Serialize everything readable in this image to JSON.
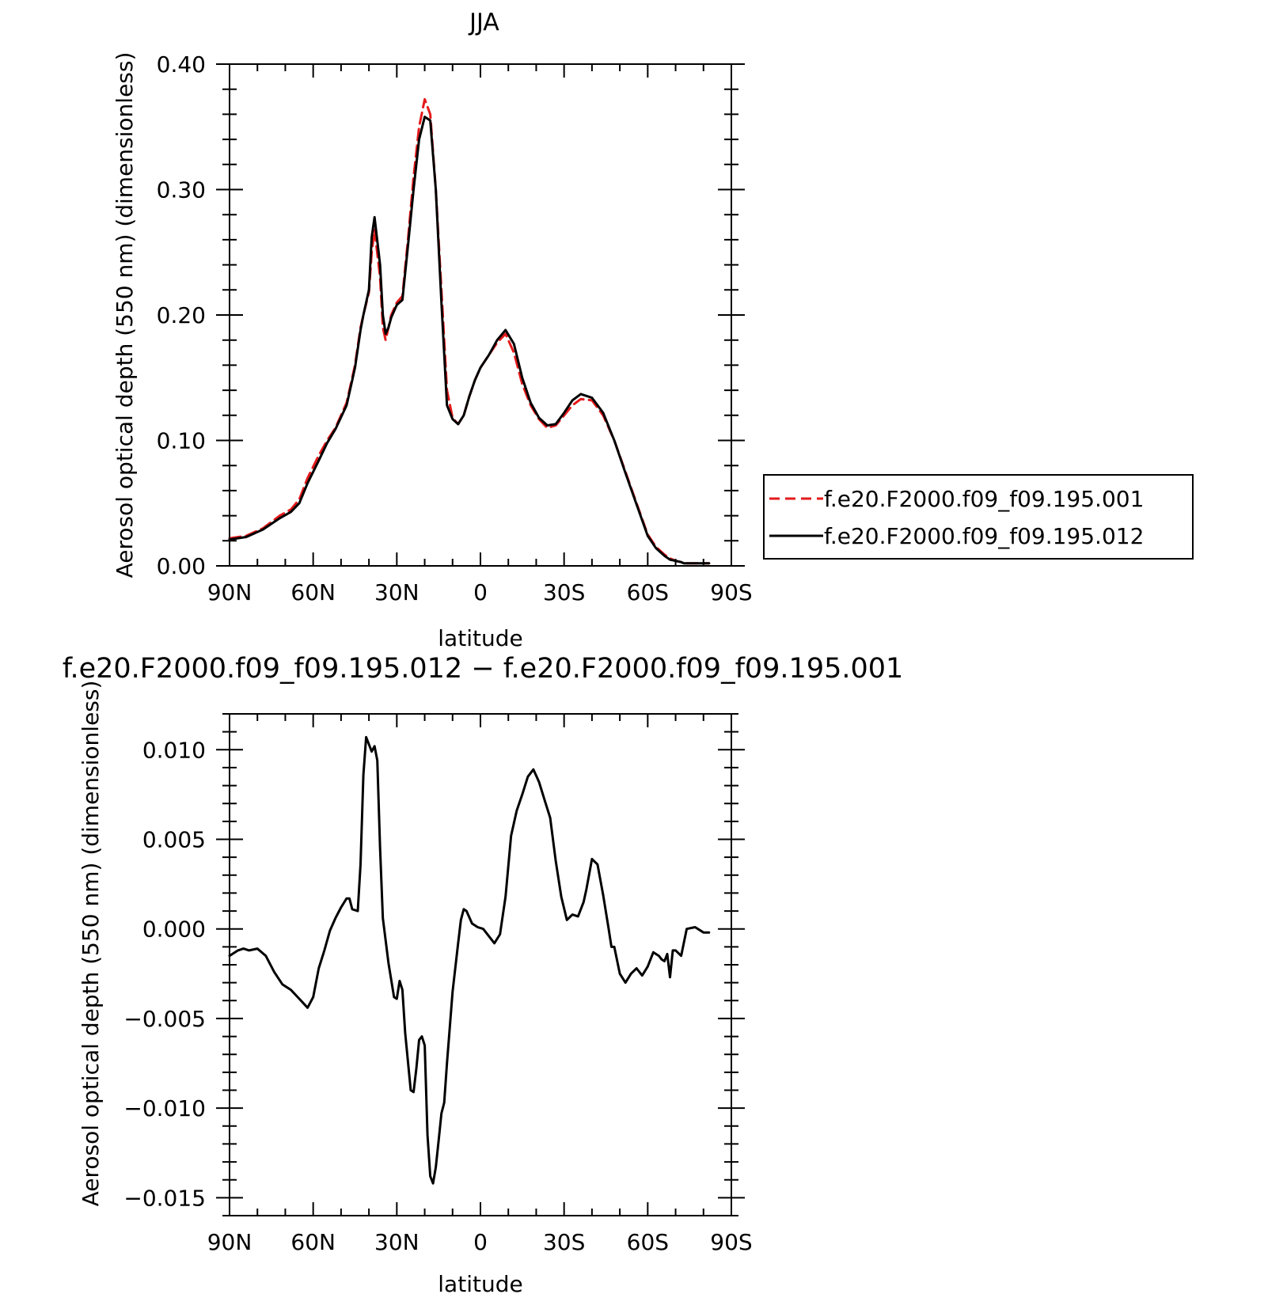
{
  "colors": {
    "black": "#000000",
    "red": "#e41a1c",
    "background": "#ffffff"
  },
  "chart_data": [
    {
      "type": "line",
      "title": "JJA",
      "xlabel": "latitude",
      "ylabel": "Aerosol optical depth (550 nm) (dimensionless)",
      "xlim": [
        90,
        -90
      ],
      "ylim": [
        0,
        0.4
      ],
      "x_ticks": [
        90,
        60,
        30,
        0,
        -30,
        -60,
        -90
      ],
      "x_tick_labels": [
        "90N",
        "60N",
        "30N",
        "0",
        "30S",
        "60S",
        "90S"
      ],
      "y_ticks": [
        0,
        0.1,
        0.2,
        0.3,
        0.4
      ],
      "y_tick_labels": [
        "0.00",
        "0.10",
        "0.20",
        "0.30",
        "0.40"
      ],
      "legend_position": "right",
      "series": [
        {
          "name": "f.e20.F2000.f09_f09.195.001",
          "color": "#e41a1c",
          "style": "dashed",
          "x": [
            90,
            84,
            78,
            72,
            68,
            65,
            62,
            58,
            55,
            52,
            48,
            46,
            45,
            43,
            42,
            40,
            39,
            38,
            36,
            35,
            34,
            33,
            32,
            30,
            28,
            26,
            24,
            22,
            20,
            18,
            16,
            14,
            12,
            10,
            8,
            6,
            4,
            2,
            0,
            -3,
            -6,
            -9,
            -12,
            -15,
            -18,
            -21,
            -24,
            -27,
            -30,
            -33,
            -36,
            -40,
            -44,
            -48,
            -52,
            -56,
            -60,
            -63,
            -66,
            -68,
            -70,
            -72,
            -73,
            -78,
            -82
          ],
          "y": [
            0.022,
            0.024,
            0.03,
            0.04,
            0.045,
            0.053,
            0.07,
            0.088,
            0.1,
            0.11,
            0.13,
            0.15,
            0.16,
            0.19,
            0.2,
            0.218,
            0.25,
            0.268,
            0.23,
            0.19,
            0.18,
            0.19,
            0.2,
            0.21,
            0.215,
            0.26,
            0.31,
            0.35,
            0.372,
            0.36,
            0.3,
            0.22,
            0.14,
            0.118,
            0.113,
            0.12,
            0.135,
            0.148,
            0.158,
            0.168,
            0.178,
            0.185,
            0.17,
            0.145,
            0.128,
            0.117,
            0.11,
            0.112,
            0.12,
            0.128,
            0.133,
            0.132,
            0.12,
            0.1,
            0.075,
            0.05,
            0.025,
            0.015,
            0.009,
            0.006,
            0.004,
            0.003,
            0.002,
            0.002,
            0.002
          ]
        },
        {
          "name": "f.e20.F2000.f09_f09.195.012",
          "color": "#000000",
          "style": "solid",
          "x": [
            90,
            84,
            78,
            72,
            68,
            65,
            62,
            58,
            55,
            52,
            48,
            46,
            45,
            43,
            42,
            40,
            39,
            38,
            36,
            35,
            34,
            33,
            32,
            30,
            28,
            26,
            24,
            22,
            20,
            18,
            16,
            14,
            12,
            10,
            8,
            6,
            4,
            2,
            0,
            -3,
            -6,
            -9,
            -12,
            -15,
            -18,
            -21,
            -24,
            -27,
            -30,
            -33,
            -36,
            -40,
            -44,
            -48,
            -52,
            -56,
            -60,
            -63,
            -66,
            -68,
            -70,
            -72,
            -73,
            -78,
            -82
          ],
          "y": [
            0.021,
            0.023,
            0.029,
            0.038,
            0.043,
            0.05,
            0.066,
            0.084,
            0.098,
            0.109,
            0.128,
            0.148,
            0.158,
            0.188,
            0.2,
            0.22,
            0.262,
            0.278,
            0.24,
            0.2,
            0.185,
            0.19,
            0.198,
            0.208,
            0.212,
            0.255,
            0.3,
            0.34,
            0.358,
            0.355,
            0.3,
            0.21,
            0.128,
            0.117,
            0.113,
            0.12,
            0.135,
            0.148,
            0.158,
            0.168,
            0.18,
            0.188,
            0.177,
            0.15,
            0.13,
            0.118,
            0.112,
            0.113,
            0.122,
            0.132,
            0.137,
            0.134,
            0.122,
            0.1,
            0.074,
            0.049,
            0.024,
            0.014,
            0.008,
            0.005,
            0.004,
            0.003,
            0.002,
            0.002,
            0.002
          ]
        }
      ]
    },
    {
      "type": "line",
      "title": "f.e20.F2000.f09_f09.195.012 − f.e20.F2000.f09_f09.195.001",
      "xlabel": "latitude",
      "ylabel": "Aerosol optical depth (550 nm) (dimensionless)",
      "xlim": [
        90,
        -90
      ],
      "ylim": [
        -0.016,
        0.012
      ],
      "x_ticks": [
        90,
        60,
        30,
        0,
        -30,
        -60,
        -90
      ],
      "x_tick_labels": [
        "90N",
        "60N",
        "30N",
        "0",
        "30S",
        "60S",
        "90S"
      ],
      "y_ticks": [
        -0.015,
        -0.01,
        -0.005,
        0,
        0.005,
        0.01
      ],
      "y_tick_labels": [
        "−0.015",
        "−0.010",
        "−0.005",
        "0.000",
        "0.005",
        "0.010"
      ],
      "series": [
        {
          "color": "#000000",
          "style": "solid",
          "x": [
            90,
            87,
            85,
            83,
            80,
            77,
            74,
            71,
            68,
            65,
            62,
            60,
            58,
            56,
            54,
            52,
            50,
            48,
            47,
            46,
            44,
            43,
            42,
            41,
            40,
            39,
            38,
            37,
            36,
            35,
            33,
            31,
            30,
            29,
            28,
            27,
            25,
            24,
            23,
            22,
            21,
            20,
            19,
            18,
            17,
            16,
            15,
            14,
            13,
            12,
            10,
            8,
            7,
            6,
            5,
            3,
            1,
            -1,
            -3,
            -5,
            -7,
            -9,
            -11,
            -13,
            -15,
            -17,
            -19,
            -21,
            -23,
            -25,
            -27,
            -29,
            -31,
            -33,
            -35,
            -37,
            -38,
            -40,
            -42,
            -44,
            -46,
            -47,
            -48,
            -50,
            -52,
            -54,
            -56,
            -58,
            -60,
            -62,
            -64,
            -65,
            -66,
            -67,
            -68,
            -69,
            -70,
            -72,
            -74,
            -77,
            -80,
            -82
          ],
          "y": [
            -0.0015,
            -0.0012,
            -0.0011,
            -0.0012,
            -0.0011,
            -0.0015,
            -0.0024,
            -0.0031,
            -0.0034,
            -0.0039,
            -0.0044,
            -0.0038,
            -0.0022,
            -0.0012,
            -0.0001,
            0.0006,
            0.0012,
            0.0017,
            0.0017,
            0.0011,
            0.001,
            0.0036,
            0.0086,
            0.0107,
            0.0103,
            0.0099,
            0.0102,
            0.0094,
            0.0045,
            0.0006,
            -0.0019,
            -0.0038,
            -0.0039,
            -0.0029,
            -0.0034,
            -0.0058,
            -0.009,
            -0.0091,
            -0.0078,
            -0.0062,
            -0.006,
            -0.0065,
            -0.0115,
            -0.0138,
            -0.0142,
            -0.0133,
            -0.0118,
            -0.0103,
            -0.0097,
            -0.0075,
            -0.0035,
            -0.0008,
            0.0005,
            0.0011,
            0.001,
            0.0003,
            0.0001,
            0.0,
            -0.0004,
            -0.0008,
            -0.0003,
            0.0018,
            0.0052,
            0.0066,
            0.0075,
            0.0085,
            0.0089,
            0.0082,
            0.0072,
            0.0062,
            0.0038,
            0.0018,
            0.0005,
            0.0008,
            0.0007,
            0.0015,
            0.0022,
            0.0039,
            0.0036,
            0.0019,
            0.0,
            -0.001,
            -0.001,
            -0.0025,
            -0.003,
            -0.0025,
            -0.0022,
            -0.0026,
            -0.0021,
            -0.0013,
            -0.0015,
            -0.0017,
            -0.0018,
            -0.0014,
            -0.0027,
            -0.0012,
            -0.0012,
            -0.0015,
            0.0,
            0.0001,
            -0.0002,
            -0.0002
          ]
        }
      ]
    }
  ]
}
